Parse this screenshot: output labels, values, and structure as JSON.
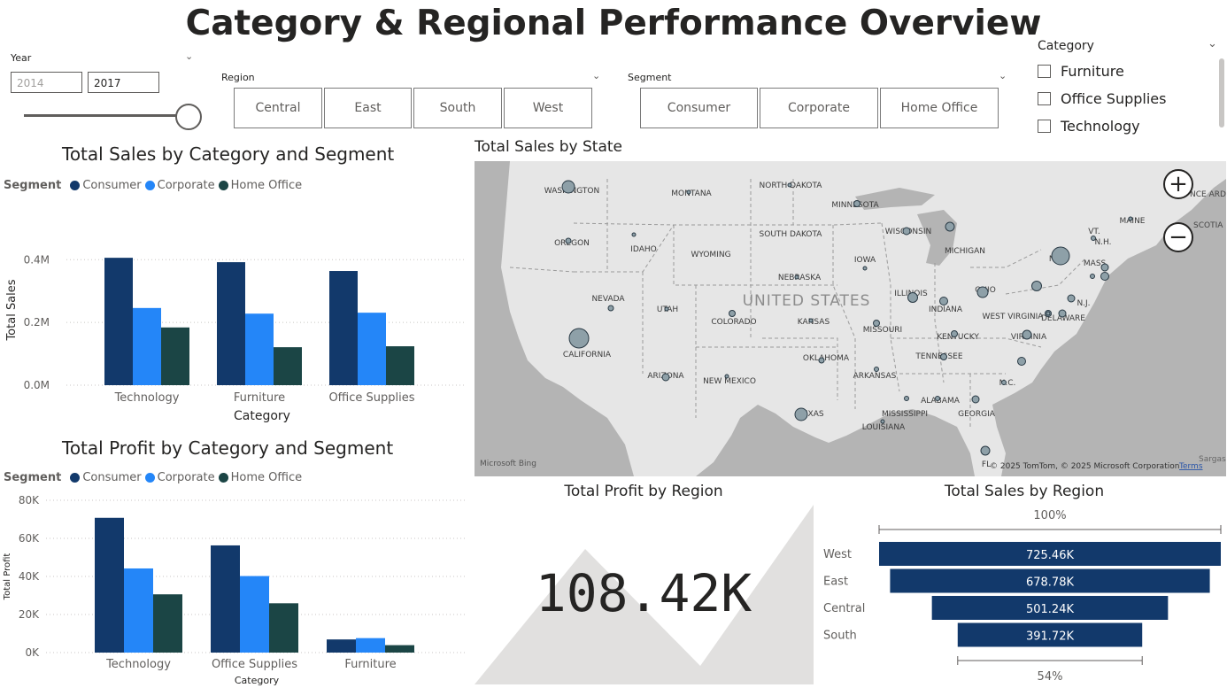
{
  "title": "Category & Regional Performance Overview",
  "colors": {
    "consumer": "#12396b",
    "corporate": "#2486f8",
    "home_office": "#1b4545",
    "map_land": "#e8e8e8",
    "map_water": "#b2b2b2",
    "kpi_shape": "#e1e0df"
  },
  "year_slicer": {
    "label": "Year",
    "from": "2014",
    "to": "2017",
    "slider_value": 1.0
  },
  "region_slicer": {
    "label": "Region",
    "options": [
      "Central",
      "East",
      "South",
      "West"
    ]
  },
  "segment_slicer": {
    "label": "Segment",
    "options": [
      "Consumer",
      "Corporate",
      "Home Office"
    ]
  },
  "category_slicer": {
    "label": "Category",
    "options": [
      "Furniture",
      "Office Supplies",
      "Technology"
    ]
  },
  "sales_chart": {
    "title": "Total Sales by Category and Segment",
    "legend_title": "Segment",
    "legend": [
      "Consumer",
      "Corporate",
      "Home Office"
    ],
    "xlabel": "Category",
    "ylabel": "Total Sales"
  },
  "profit_chart": {
    "title": "Total Profit by Category and Segment",
    "legend_title": "Segment",
    "legend": [
      "Consumer",
      "Corporate",
      "Home Office"
    ],
    "xlabel": "Category",
    "ylabel": "Total Profit"
  },
  "map": {
    "title": "Total Sales by State",
    "country_label": "UNITED STATES",
    "state_labels": [
      "WASHINGTON",
      "OREGON",
      "MONTANA",
      "IDAHO",
      "NORTH DAKOTA",
      "SOUTH DAKOTA",
      "WYOMING",
      "MINNESOTA",
      "WISCONSIN",
      "MICHIGAN",
      "NEVADA",
      "UTAH",
      "COLORADO",
      "NEBRASKA",
      "IOWA",
      "ILLINOIS",
      "INDIANA",
      "OHIO",
      "CALIFORNIA",
      "KANSAS",
      "MISSOURI",
      "KENTUCKY",
      "WEST VIRGINIA",
      "VIRGINIA",
      "ARIZONA",
      "NEW MEXICO",
      "OKLAHOMA",
      "ARKANSAS",
      "TENNESSEE",
      "TEXAS",
      "MISSISSIPPI",
      "ALABAMA",
      "GEORGIA",
      "LOUISIANA",
      "NY",
      "MASS.",
      "N.H.",
      "VT.",
      "MAINE",
      "N.J.",
      "DELAWARE",
      "N.C.",
      "FL"
    ],
    "bing": "Microsoft Bing",
    "copyright": "© 2025 TomTom, © 2025 Microsoft Corporation",
    "terms": "Terms",
    "edge_labels": [
      "NCE ARD ISLAND",
      "SCOTIA",
      "Sargass"
    ]
  },
  "kpi": {
    "title": "Total Profit by Region",
    "value": "108.42K"
  },
  "funnel": {
    "title": "Total Sales by Region",
    "top_pct": "100%",
    "bottom_pct": "54%"
  },
  "chart_data": [
    {
      "type": "bar",
      "title": "Total Sales by Category and Segment",
      "xlabel": "Category",
      "ylabel": "Total Sales",
      "categories": [
        "Technology",
        "Furniture",
        "Office Supplies"
      ],
      "series": [
        {
          "name": "Consumer",
          "values": [
            406000,
            392000,
            364000
          ]
        },
        {
          "name": "Corporate",
          "values": [
            246000,
            228000,
            231000
          ]
        },
        {
          "name": "Home Office",
          "values": [
            184000,
            121000,
            124000
          ]
        }
      ],
      "ylim": [
        0,
        0.46
      ],
      "yticks": [
        "0.0M",
        "0.2M",
        "0.4M"
      ],
      "ytick_values": [
        0,
        200000,
        400000
      ],
      "legend_position": "top-left",
      "grid": true
    },
    {
      "type": "bar",
      "title": "Total Profit by Category and Segment",
      "xlabel": "Category",
      "ylabel": "Total Profit",
      "categories": [
        "Technology",
        "Office Supplies",
        "Furniture"
      ],
      "series": [
        {
          "name": "Consumer",
          "values": [
            70800,
            56300,
            6900
          ]
        },
        {
          "name": "Corporate",
          "values": [
            44200,
            40200,
            7600
          ]
        },
        {
          "name": "Home Office",
          "values": [
            30600,
            25900,
            3900
          ]
        }
      ],
      "ylim": [
        0,
        80000
      ],
      "yticks": [
        "0K",
        "20K",
        "40K",
        "60K",
        "80K"
      ],
      "ytick_values": [
        0,
        20000,
        40000,
        60000,
        80000
      ],
      "legend_position": "top-left",
      "grid": true
    },
    {
      "type": "bar",
      "title": "Total Sales by Region",
      "categories": [
        "West",
        "East",
        "Central",
        "South"
      ],
      "values": [
        725.46,
        678.78,
        501.24,
        391.72
      ],
      "labels": [
        "725.46K",
        "678.78K",
        "501.24K",
        "391.72K"
      ]
    }
  ]
}
